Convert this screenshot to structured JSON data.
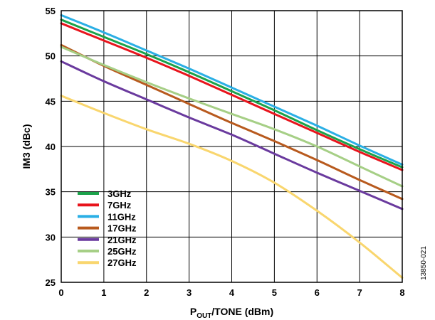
{
  "chart_data": {
    "type": "line",
    "xlabel": {
      "main": "P",
      "sub": "OUT",
      "rest": "/TONE (dBm)"
    },
    "ylabel": "IM3 (dBc)",
    "xlim": [
      0,
      8
    ],
    "ylim": [
      25,
      55
    ],
    "xticks": [
      "0",
      "1",
      "2",
      "3",
      "4",
      "5",
      "6",
      "7",
      "8"
    ],
    "yticks": [
      "25",
      "30",
      "35",
      "40",
      "45",
      "50",
      "55"
    ],
    "grid": true,
    "legend_position": "bottom-left",
    "figure_id": "13850-021",
    "series": [
      {
        "name": "3GHz",
        "color": "#1BA24A",
        "x": [
          0,
          1,
          2,
          3,
          4,
          5,
          6,
          7,
          8
        ],
        "y": [
          54.0,
          52.1,
          50.2,
          48.2,
          46.1,
          44.0,
          41.8,
          39.7,
          37.7
        ]
      },
      {
        "name": "7GHz",
        "color": "#E8141C",
        "x": [
          0,
          1,
          2,
          3,
          4,
          5,
          6,
          7,
          8
        ],
        "y": [
          53.6,
          51.7,
          49.8,
          47.8,
          45.7,
          43.6,
          41.5,
          39.4,
          37.4
        ]
      },
      {
        "name": "11GHz",
        "color": "#2AAFE5",
        "x": [
          0,
          1,
          2,
          3,
          4,
          5,
          6,
          7,
          8
        ],
        "y": [
          54.5,
          52.6,
          50.6,
          48.6,
          46.5,
          44.4,
          42.3,
          40.1,
          38.0
        ]
      },
      {
        "name": "17GHz",
        "color": "#B85A1E",
        "x": [
          0,
          1,
          2,
          3,
          4,
          5,
          6,
          7,
          8
        ],
        "y": [
          51.2,
          48.9,
          46.8,
          44.7,
          42.6,
          40.6,
          38.5,
          36.3,
          34.2
        ]
      },
      {
        "name": "21GHz",
        "color": "#6A3A9E",
        "x": [
          0,
          1,
          2,
          3,
          4,
          5,
          6,
          7,
          8
        ],
        "y": [
          49.4,
          47.2,
          45.2,
          43.2,
          41.3,
          39.2,
          37.1,
          35.1,
          33.1
        ]
      },
      {
        "name": "25GHz",
        "color": "#A6CF86",
        "x": [
          0,
          1,
          2,
          3,
          4,
          5,
          6,
          7,
          8
        ],
        "y": [
          51.0,
          49.0,
          47.1,
          45.3,
          43.6,
          41.9,
          40.0,
          37.8,
          35.6
        ]
      },
      {
        "name": "27GHz",
        "color": "#F9D66E",
        "x": [
          0,
          1,
          2,
          3,
          4,
          5,
          6,
          7,
          8
        ],
        "y": [
          45.6,
          43.7,
          41.9,
          40.3,
          38.4,
          36.0,
          32.9,
          29.4,
          25.5
        ]
      }
    ]
  }
}
